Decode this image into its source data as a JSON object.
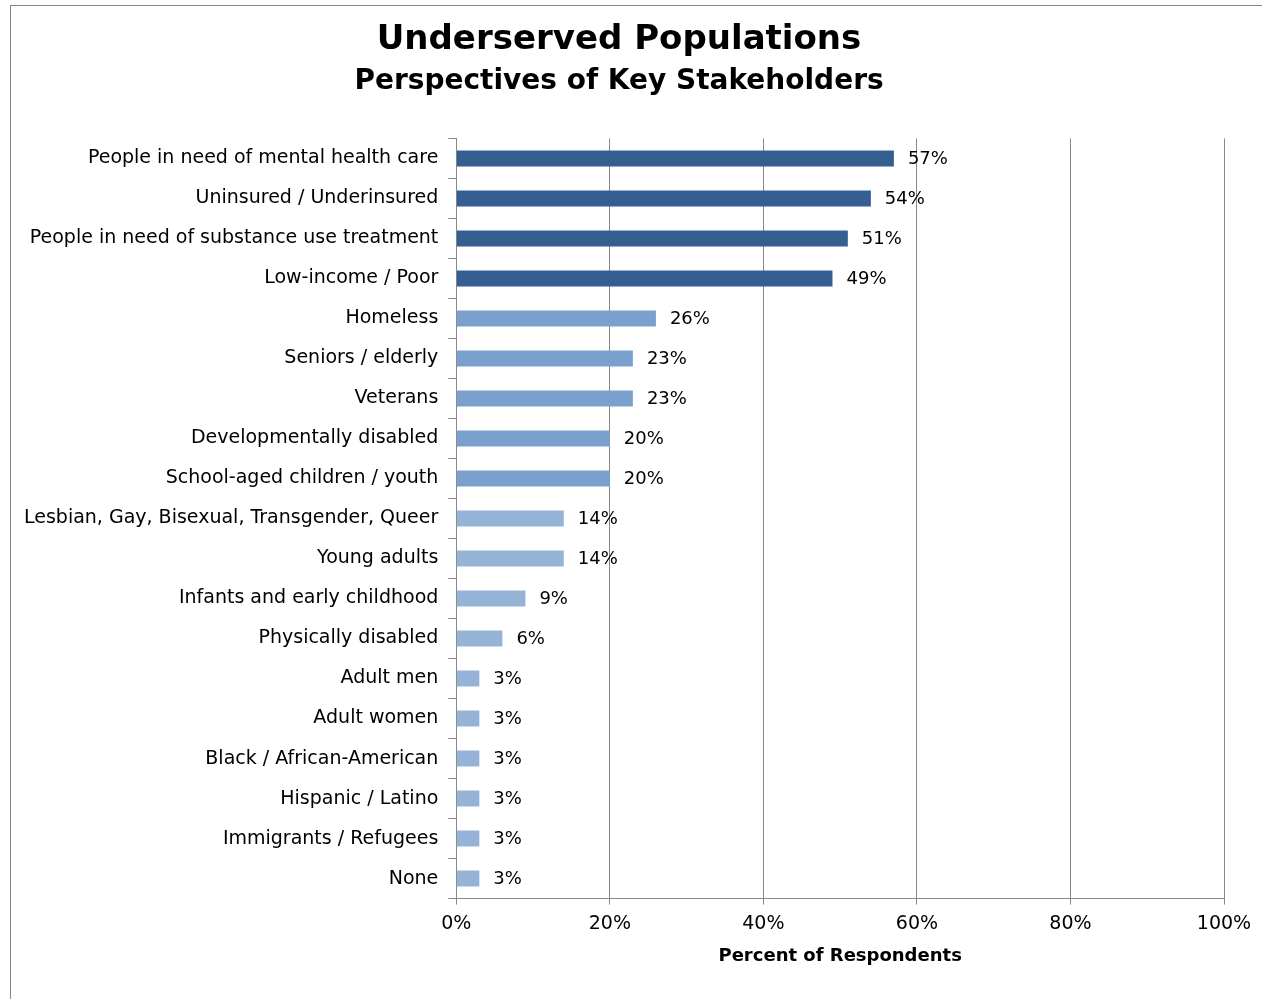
{
  "chart_data": {
    "type": "bar",
    "orientation": "horizontal",
    "title": "Underserved Populations",
    "subtitle": "Perspectives of Key Stakeholders",
    "xlabel": "Percent of Respondents",
    "categories": [
      "People in need of mental health care",
      "Uninsured / Underinsured",
      "People in need of substance use treatment",
      "Low-income / Poor",
      "Homeless",
      "Seniors / elderly",
      "Veterans",
      "Developmentally disabled",
      "School-aged children / youth",
      "Lesbian, Gay, Bisexual, Transgender, Queer",
      "Young adults",
      "Infants and early childhood",
      "Physically disabled",
      "Adult men",
      "Adult women",
      "Black / African-American",
      "Hispanic / Latino",
      "Immigrants / Refugees",
      "None"
    ],
    "values": [
      57,
      54,
      51,
      49,
      26,
      23,
      23,
      20,
      20,
      14,
      14,
      9,
      6,
      3,
      3,
      3,
      3,
      3,
      3
    ],
    "colors": [
      "#355f91",
      "#355f91",
      "#355f91",
      "#355f91",
      "#7ba0cd",
      "#7ba0cd",
      "#7ba0cd",
      "#7ba0cd",
      "#7ba0cd",
      "#95b3d7",
      "#95b3d7",
      "#95b3d7",
      "#95b3d7",
      "#95b3d7",
      "#95b3d7",
      "#95b3d7",
      "#95b3d7",
      "#95b3d7",
      "#95b3d7"
    ],
    "value_labels": [
      "57%",
      "54%",
      "51%",
      "49%",
      "26%",
      "23%",
      "23%",
      "20%",
      "20%",
      "14%",
      "14%",
      "9%",
      "6%",
      "3%",
      "3%",
      "3%",
      "3%",
      "3%",
      "3%"
    ],
    "xlim": [
      0,
      100
    ],
    "xticks": [
      {
        "value": 0,
        "label": "0%"
      },
      {
        "value": 20,
        "label": "20%"
      },
      {
        "value": 40,
        "label": "40%"
      },
      {
        "value": 60,
        "label": "60%"
      },
      {
        "value": 80,
        "label": "80%"
      },
      {
        "value": 100,
        "label": "100%"
      }
    ],
    "grid": "x",
    "legend": false
  }
}
